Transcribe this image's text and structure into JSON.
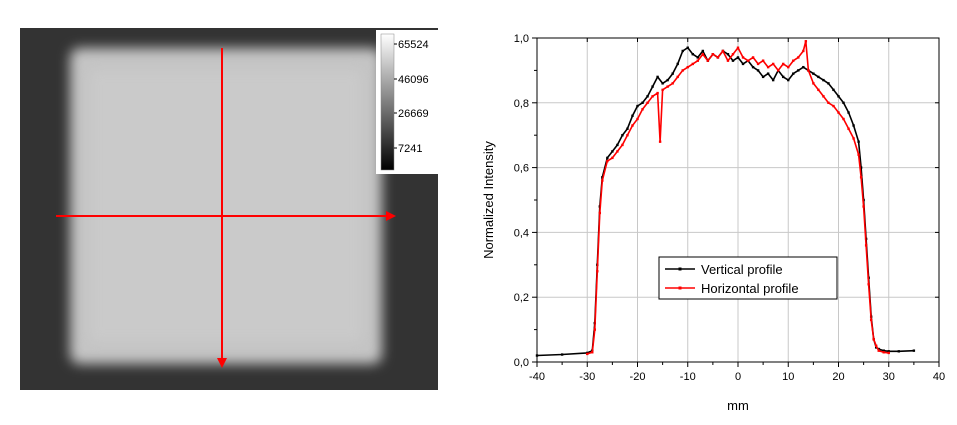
{
  "image_panel": {
    "colorbar_ticks": [
      "65524",
      "46096",
      "26669",
      "7241"
    ]
  },
  "chart_data": {
    "type": "line",
    "xlabel": "mm",
    "ylabel": "Normalized Intensity",
    "xlim": [
      -40,
      40
    ],
    "ylim": [
      0.0,
      1.0
    ],
    "x_ticks": [
      "-40",
      "-30",
      "-20",
      "-10",
      "0",
      "10",
      "20",
      "30",
      "40"
    ],
    "y_ticks": [
      "0,0",
      "0,2",
      "0,4",
      "0,6",
      "0,8",
      "1,0"
    ],
    "grid": true,
    "legend_position": "center-right",
    "series": [
      {
        "name": "Vertical profile",
        "color": "#000000",
        "x": [
          -40,
          -35,
          -30,
          -29,
          -28.5,
          -28,
          -27.5,
          -27,
          -26,
          -25,
          -24,
          -23,
          -22,
          -21,
          -20,
          -19,
          -18,
          -17,
          -16,
          -15,
          -14,
          -13,
          -12,
          -11,
          -10,
          -9,
          -8,
          -7,
          -6,
          -5,
          -4,
          -3,
          -2,
          -1,
          0,
          1,
          2,
          3,
          4,
          5,
          6,
          7,
          8,
          9,
          10,
          11,
          12,
          13,
          14,
          15,
          16,
          17,
          18,
          19,
          20,
          21,
          22,
          23,
          24,
          24.5,
          25,
          25.5,
          26,
          26.5,
          27,
          27.5,
          28,
          29,
          30,
          32,
          35
        ],
        "y": [
          0.02,
          0.023,
          0.028,
          0.035,
          0.12,
          0.3,
          0.48,
          0.57,
          0.63,
          0.65,
          0.67,
          0.7,
          0.72,
          0.76,
          0.79,
          0.8,
          0.82,
          0.85,
          0.88,
          0.86,
          0.87,
          0.89,
          0.92,
          0.96,
          0.97,
          0.95,
          0.94,
          0.96,
          0.93,
          0.95,
          0.94,
          0.96,
          0.95,
          0.93,
          0.94,
          0.92,
          0.93,
          0.91,
          0.9,
          0.88,
          0.89,
          0.87,
          0.9,
          0.88,
          0.87,
          0.89,
          0.9,
          0.91,
          0.9,
          0.89,
          0.88,
          0.87,
          0.86,
          0.84,
          0.82,
          0.8,
          0.77,
          0.73,
          0.68,
          0.6,
          0.5,
          0.38,
          0.26,
          0.14,
          0.07,
          0.045,
          0.04,
          0.035,
          0.033,
          0.033,
          0.035
        ]
      },
      {
        "name": "Horizontal profile",
        "color": "#ff0000",
        "x": [
          -30,
          -29,
          -28.5,
          -28,
          -27.5,
          -27,
          -26,
          -25,
          -24,
          -23,
          -22,
          -21,
          -20,
          -19,
          -18,
          -17,
          -16,
          -15.5,
          -15,
          -14,
          -13,
          -12,
          -11,
          -10,
          -9,
          -8,
          -7,
          -6,
          -5,
          -4,
          -3,
          -2,
          -1,
          0,
          1,
          2,
          3,
          4,
          5,
          6,
          7,
          8,
          9,
          10,
          11,
          12,
          13,
          13.5,
          14,
          15,
          16,
          17,
          18,
          19,
          20,
          21,
          22,
          23,
          24,
          24.5,
          25,
          25.5,
          26,
          26.5,
          27,
          27.5,
          28,
          29,
          30
        ],
        "y": [
          0.025,
          0.03,
          0.1,
          0.28,
          0.46,
          0.56,
          0.62,
          0.63,
          0.65,
          0.67,
          0.7,
          0.73,
          0.75,
          0.78,
          0.8,
          0.82,
          0.83,
          0.68,
          0.84,
          0.85,
          0.86,
          0.88,
          0.9,
          0.91,
          0.92,
          0.93,
          0.95,
          0.93,
          0.95,
          0.94,
          0.96,
          0.93,
          0.95,
          0.97,
          0.94,
          0.93,
          0.94,
          0.92,
          0.93,
          0.91,
          0.92,
          0.9,
          0.92,
          0.91,
          0.93,
          0.94,
          0.96,
          0.99,
          0.9,
          0.86,
          0.84,
          0.82,
          0.8,
          0.79,
          0.77,
          0.75,
          0.72,
          0.69,
          0.64,
          0.57,
          0.48,
          0.36,
          0.24,
          0.13,
          0.07,
          0.05,
          0.035,
          0.03,
          0.028
        ]
      }
    ]
  }
}
